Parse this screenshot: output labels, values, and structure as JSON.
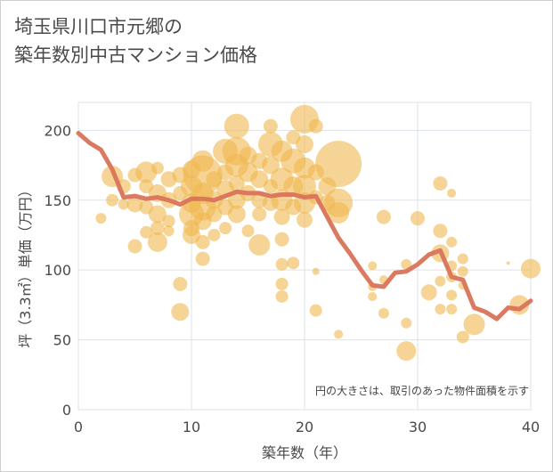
{
  "title_lines": [
    "埼玉県川口市元郷の",
    "築年数別中古マンション価格"
  ],
  "chart_data": {
    "type": "scatter",
    "xlabel": "築年数（年）",
    "ylabel": "坪（3.3㎡）単価（万円）",
    "xlim": [
      0,
      40
    ],
    "ylim": [
      0,
      220
    ],
    "x_ticks": [
      0,
      10,
      20,
      30,
      40
    ],
    "y_ticks": [
      0,
      50,
      100,
      150,
      200
    ],
    "grid": true,
    "note": "円の大きさは、取引のあった物件面積を示す",
    "colors": {
      "bubble": "#f0b84e",
      "line": "#d9735a",
      "grid": "#dde3ea"
    },
    "bubbles": [
      {
        "x": 2,
        "y": 137,
        "s": 6
      },
      {
        "x": 3,
        "y": 167,
        "s": 12
      },
      {
        "x": 3,
        "y": 150,
        "s": 7
      },
      {
        "x": 4,
        "y": 160,
        "s": 8
      },
      {
        "x": 4,
        "y": 147,
        "s": 6
      },
      {
        "x": 5,
        "y": 168,
        "s": 8
      },
      {
        "x": 5,
        "y": 147,
        "s": 9
      },
      {
        "x": 5,
        "y": 117,
        "s": 8
      },
      {
        "x": 6,
        "y": 170,
        "s": 12
      },
      {
        "x": 6,
        "y": 160,
        "s": 8
      },
      {
        "x": 6,
        "y": 145,
        "s": 8
      },
      {
        "x": 6,
        "y": 127,
        "s": 7
      },
      {
        "x": 7,
        "y": 173,
        "s": 7
      },
      {
        "x": 7,
        "y": 155,
        "s": 10
      },
      {
        "x": 7,
        "y": 140,
        "s": 10
      },
      {
        "x": 7,
        "y": 130,
        "s": 8
      },
      {
        "x": 7,
        "y": 120,
        "s": 11
      },
      {
        "x": 8,
        "y": 165,
        "s": 9
      },
      {
        "x": 8,
        "y": 150,
        "s": 9
      },
      {
        "x": 8,
        "y": 135,
        "s": 7
      },
      {
        "x": 8,
        "y": 128,
        "s": 6
      },
      {
        "x": 9,
        "y": 168,
        "s": 9
      },
      {
        "x": 9,
        "y": 155,
        "s": 8
      },
      {
        "x": 9,
        "y": 90,
        "s": 8
      },
      {
        "x": 9,
        "y": 70,
        "s": 10
      },
      {
        "x": 10,
        "y": 172,
        "s": 10
      },
      {
        "x": 10,
        "y": 160,
        "s": 12
      },
      {
        "x": 10,
        "y": 148,
        "s": 11
      },
      {
        "x": 10,
        "y": 140,
        "s": 14
      },
      {
        "x": 10,
        "y": 130,
        "s": 9
      },
      {
        "x": 10,
        "y": 125,
        "s": 10
      },
      {
        "x": 11,
        "y": 178,
        "s": 12
      },
      {
        "x": 11,
        "y": 168,
        "s": 22
      },
      {
        "x": 11,
        "y": 155,
        "s": 12
      },
      {
        "x": 11,
        "y": 145,
        "s": 15
      },
      {
        "x": 11,
        "y": 135,
        "s": 10
      },
      {
        "x": 11,
        "y": 120,
        "s": 8
      },
      {
        "x": 11,
        "y": 108,
        "s": 8
      },
      {
        "x": 12,
        "y": 165,
        "s": 9
      },
      {
        "x": 12,
        "y": 150,
        "s": 10
      },
      {
        "x": 12,
        "y": 140,
        "s": 9
      },
      {
        "x": 12,
        "y": 125,
        "s": 7
      },
      {
        "x": 13,
        "y": 185,
        "s": 14
      },
      {
        "x": 13,
        "y": 170,
        "s": 9
      },
      {
        "x": 13,
        "y": 158,
        "s": 10
      },
      {
        "x": 13,
        "y": 145,
        "s": 9
      },
      {
        "x": 13,
        "y": 130,
        "s": 7
      },
      {
        "x": 14,
        "y": 203,
        "s": 14
      },
      {
        "x": 14,
        "y": 185,
        "s": 16
      },
      {
        "x": 14,
        "y": 175,
        "s": 13
      },
      {
        "x": 14,
        "y": 162,
        "s": 9
      },
      {
        "x": 14,
        "y": 150,
        "s": 10
      },
      {
        "x": 14,
        "y": 140,
        "s": 10
      },
      {
        "x": 15,
        "y": 182,
        "s": 10
      },
      {
        "x": 15,
        "y": 170,
        "s": 11
      },
      {
        "x": 15,
        "y": 155,
        "s": 9
      },
      {
        "x": 15,
        "y": 128,
        "s": 7
      },
      {
        "x": 16,
        "y": 178,
        "s": 9
      },
      {
        "x": 16,
        "y": 165,
        "s": 10
      },
      {
        "x": 16,
        "y": 150,
        "s": 9
      },
      {
        "x": 16,
        "y": 140,
        "s": 8
      },
      {
        "x": 16,
        "y": 118,
        "s": 12
      },
      {
        "x": 17,
        "y": 203,
        "s": 8
      },
      {
        "x": 17,
        "y": 190,
        "s": 14
      },
      {
        "x": 17,
        "y": 175,
        "s": 10
      },
      {
        "x": 17,
        "y": 160,
        "s": 8
      },
      {
        "x": 17,
        "y": 148,
        "s": 9
      },
      {
        "x": 18,
        "y": 185,
        "s": 12
      },
      {
        "x": 18,
        "y": 165,
        "s": 13
      },
      {
        "x": 18,
        "y": 150,
        "s": 12
      },
      {
        "x": 18,
        "y": 138,
        "s": 9
      },
      {
        "x": 18,
        "y": 122,
        "s": 8
      },
      {
        "x": 18,
        "y": 104,
        "s": 7
      },
      {
        "x": 18,
        "y": 90,
        "s": 7
      },
      {
        "x": 18,
        "y": 81,
        "s": 7
      },
      {
        "x": 19,
        "y": 195,
        "s": 8
      },
      {
        "x": 19,
        "y": 178,
        "s": 14
      },
      {
        "x": 19,
        "y": 160,
        "s": 11
      },
      {
        "x": 19,
        "y": 145,
        "s": 9
      },
      {
        "x": 19,
        "y": 105,
        "s": 7
      },
      {
        "x": 20,
        "y": 208,
        "s": 16
      },
      {
        "x": 20,
        "y": 190,
        "s": 10
      },
      {
        "x": 20,
        "y": 173,
        "s": 12
      },
      {
        "x": 20,
        "y": 160,
        "s": 13
      },
      {
        "x": 20,
        "y": 148,
        "s": 12
      },
      {
        "x": 20,
        "y": 136,
        "s": 9
      },
      {
        "x": 21,
        "y": 203,
        "s": 8
      },
      {
        "x": 21,
        "y": 170,
        "s": 9
      },
      {
        "x": 21,
        "y": 152,
        "s": 8
      },
      {
        "x": 21,
        "y": 99,
        "s": 4
      },
      {
        "x": 21,
        "y": 71,
        "s": 7
      },
      {
        "x": 22,
        "y": 160,
        "s": 10
      },
      {
        "x": 22,
        "y": 148,
        "s": 9
      },
      {
        "x": 23,
        "y": 176,
        "s": 26
      },
      {
        "x": 23,
        "y": 148,
        "s": 16
      },
      {
        "x": 23,
        "y": 141,
        "s": 12
      },
      {
        "x": 23,
        "y": 54,
        "s": 5
      },
      {
        "x": 26,
        "y": 103,
        "s": 5
      },
      {
        "x": 26,
        "y": 88,
        "s": 5
      },
      {
        "x": 26,
        "y": 81,
        "s": 5
      },
      {
        "x": 27,
        "y": 138,
        "s": 8
      },
      {
        "x": 27,
        "y": 93,
        "s": 5
      },
      {
        "x": 27,
        "y": 69,
        "s": 6
      },
      {
        "x": 29,
        "y": 104,
        "s": 6
      },
      {
        "x": 29,
        "y": 62,
        "s": 6
      },
      {
        "x": 29,
        "y": 42,
        "s": 11
      },
      {
        "x": 30,
        "y": 137,
        "s": 8
      },
      {
        "x": 31,
        "y": 84,
        "s": 9
      },
      {
        "x": 32,
        "y": 162,
        "s": 8
      },
      {
        "x": 32,
        "y": 128,
        "s": 8
      },
      {
        "x": 32,
        "y": 112,
        "s": 10
      },
      {
        "x": 32,
        "y": 92,
        "s": 6
      },
      {
        "x": 32,
        "y": 72,
        "s": 6
      },
      {
        "x": 33,
        "y": 155,
        "s": 5
      },
      {
        "x": 33,
        "y": 120,
        "s": 6
      },
      {
        "x": 33,
        "y": 103,
        "s": 6
      },
      {
        "x": 33,
        "y": 95,
        "s": 6
      },
      {
        "x": 33,
        "y": 82,
        "s": 6
      },
      {
        "x": 33,
        "y": 72,
        "s": 6
      },
      {
        "x": 34,
        "y": 108,
        "s": 6
      },
      {
        "x": 34,
        "y": 99,
        "s": 6
      },
      {
        "x": 34,
        "y": 89,
        "s": 5
      },
      {
        "x": 34,
        "y": 52,
        "s": 7
      },
      {
        "x": 35,
        "y": 61,
        "s": 12
      },
      {
        "x": 38,
        "y": 105,
        "s": 2
      },
      {
        "x": 39,
        "y": 75,
        "s": 11
      },
      {
        "x": 40,
        "y": 101,
        "s": 11
      }
    ],
    "trend_line": [
      {
        "x": 0,
        "y": 198
      },
      {
        "x": 1,
        "y": 191
      },
      {
        "x": 2,
        "y": 186
      },
      {
        "x": 3,
        "y": 172
      },
      {
        "x": 4,
        "y": 152
      },
      {
        "x": 5,
        "y": 153
      },
      {
        "x": 6,
        "y": 151
      },
      {
        "x": 7,
        "y": 152
      },
      {
        "x": 8,
        "y": 150
      },
      {
        "x": 9,
        "y": 147
      },
      {
        "x": 10,
        "y": 151
      },
      {
        "x": 11,
        "y": 151
      },
      {
        "x": 12,
        "y": 150
      },
      {
        "x": 13,
        "y": 153
      },
      {
        "x": 14,
        "y": 156
      },
      {
        "x": 15,
        "y": 155
      },
      {
        "x": 16,
        "y": 155
      },
      {
        "x": 17,
        "y": 153
      },
      {
        "x": 18,
        "y": 154
      },
      {
        "x": 19,
        "y": 154
      },
      {
        "x": 20,
        "y": 152
      },
      {
        "x": 21,
        "y": 153
      },
      {
        "x": 22,
        "y": 138
      },
      {
        "x": 23,
        "y": 123
      },
      {
        "x": 24,
        "y": 112
      },
      {
        "x": 25,
        "y": 100
      },
      {
        "x": 26,
        "y": 89
      },
      {
        "x": 27,
        "y": 88
      },
      {
        "x": 28,
        "y": 98
      },
      {
        "x": 29,
        "y": 99
      },
      {
        "x": 30,
        "y": 104
      },
      {
        "x": 31,
        "y": 111
      },
      {
        "x": 32,
        "y": 114
      },
      {
        "x": 33,
        "y": 95
      },
      {
        "x": 34,
        "y": 93
      },
      {
        "x": 35,
        "y": 73
      },
      {
        "x": 36,
        "y": 70
      },
      {
        "x": 37,
        "y": 65
      },
      {
        "x": 38,
        "y": 73
      },
      {
        "x": 39,
        "y": 72
      },
      {
        "x": 40,
        "y": 78
      }
    ]
  }
}
